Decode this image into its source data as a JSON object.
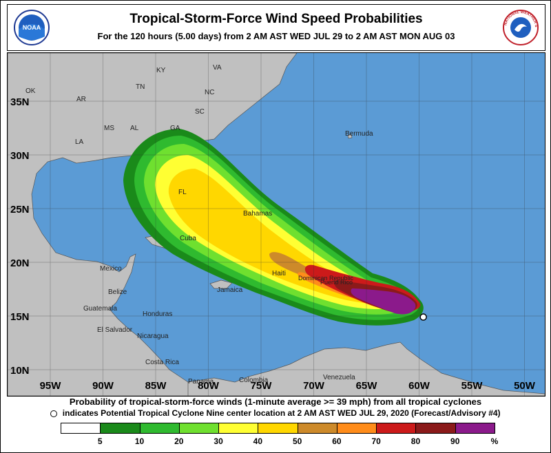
{
  "header": {
    "title": "Tropical-Storm-Force Wind Speed Probabilities",
    "subtitle": "For the 120 hours (5.00 days) from 2 AM AST WED JUL 29 to 2 AM AST MON AUG 03",
    "left_logo": "NOAA",
    "right_logo": "NATIONAL WEATHER SERVICE"
  },
  "map": {
    "lat_labels": [
      "35N",
      "30N",
      "25N",
      "20N",
      "15N",
      "10N"
    ],
    "lon_labels": [
      "95W",
      "90W",
      "85W",
      "80W",
      "75W",
      "70W",
      "65W",
      "60W",
      "55W",
      "50W"
    ],
    "place_labels": [
      "OK",
      "AR",
      "TN",
      "KY",
      "VA",
      "NC",
      "SC",
      "MS",
      "AL",
      "GA",
      "LA",
      "FL",
      "Bermuda",
      "Bahamas",
      "Cuba",
      "Mexico",
      "Belize",
      "Guatemala",
      "Honduras",
      "El Salvador",
      "Nicaragua",
      "Costa Rica",
      "Panama",
      "Colombia",
      "Venezuela",
      "Jamaica",
      "Haiti",
      "Dominican Republic",
      "Puerto Rico"
    ],
    "ocean_color": "#5b9bd5",
    "land_color": "#c0c0c0",
    "storm_center": {
      "lat": 14.9,
      "lon": 59.6,
      "marker": "open-circle"
    }
  },
  "legend": {
    "line1": "Probability of tropical-storm-force winds (1-minute average >= 39 mph) from all tropical cyclones",
    "line2": "indicates Potential Tropical Cyclone Nine center location at 2 AM AST WED JUL 29, 2020 (Forecast/Advisory #4)",
    "bins": [
      {
        "label": "5",
        "color": "#ffffff"
      },
      {
        "label": "10",
        "color": "#1a8a1a"
      },
      {
        "label": "20",
        "color": "#2fba2f"
      },
      {
        "label": "30",
        "color": "#6fe02f"
      },
      {
        "label": "40",
        "color": "#ffff33"
      },
      {
        "label": "50",
        "color": "#ffd700"
      },
      {
        "label": "60",
        "color": "#cd8a2a"
      },
      {
        "label": "70",
        "color": "#ff8c1a"
      },
      {
        "label": "80",
        "color": "#cc1a1a"
      },
      {
        "label": "90",
        "color": "#8b1a1a"
      },
      {
        "label": "%",
        "color": "#8b1a8b"
      }
    ]
  }
}
